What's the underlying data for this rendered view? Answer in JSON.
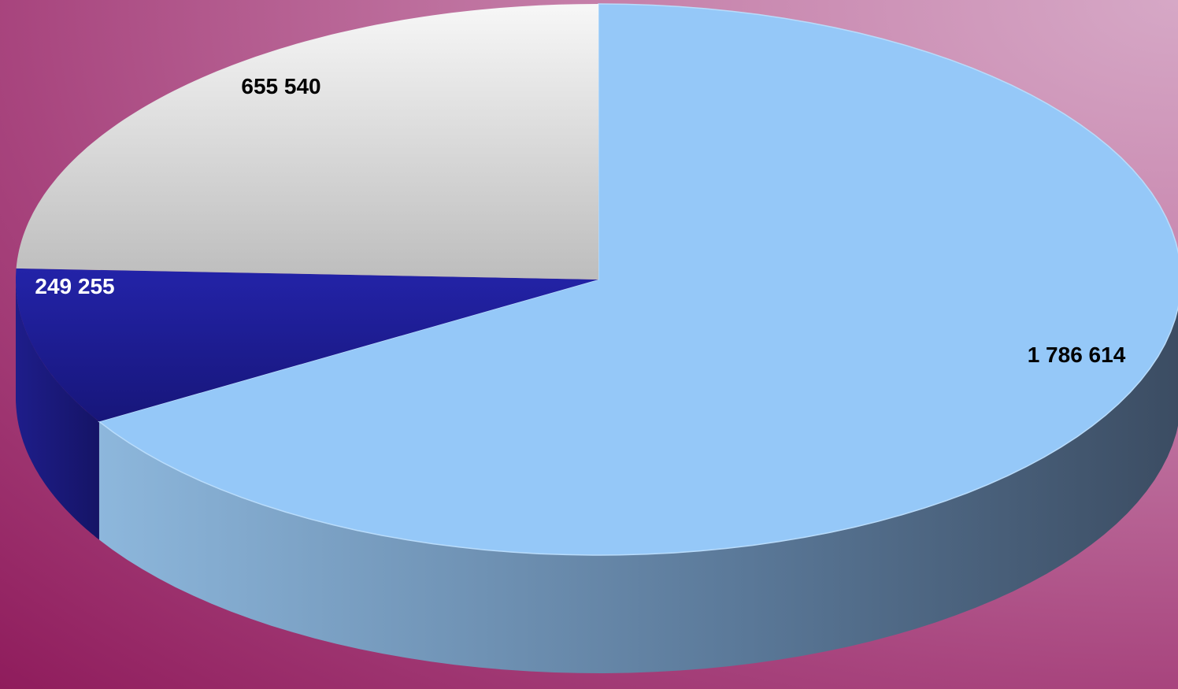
{
  "chart_data": {
    "type": "pie",
    "style": "3d",
    "slices": [
      {
        "label": "1 786 614",
        "value": 1786614,
        "color": "#95c8f8",
        "side_color_light": "#8db7dc",
        "side_color_dark": "#3b4c62",
        "label_color": "#000000"
      },
      {
        "label": "249 255",
        "value": 249255,
        "color": "#201f9c",
        "side_color_light": "#1e1d8a",
        "side_color_dark": "#151466",
        "label_color": "#ffffff"
      },
      {
        "label": "655 540",
        "value": 655540,
        "color": "#e6e6e6",
        "side_color_light": "#cfcfcf",
        "side_color_dark": "#a9a9a9",
        "label_color": "#000000"
      }
    ],
    "start_position": "top, clockwise",
    "legend": "none",
    "title": ""
  }
}
